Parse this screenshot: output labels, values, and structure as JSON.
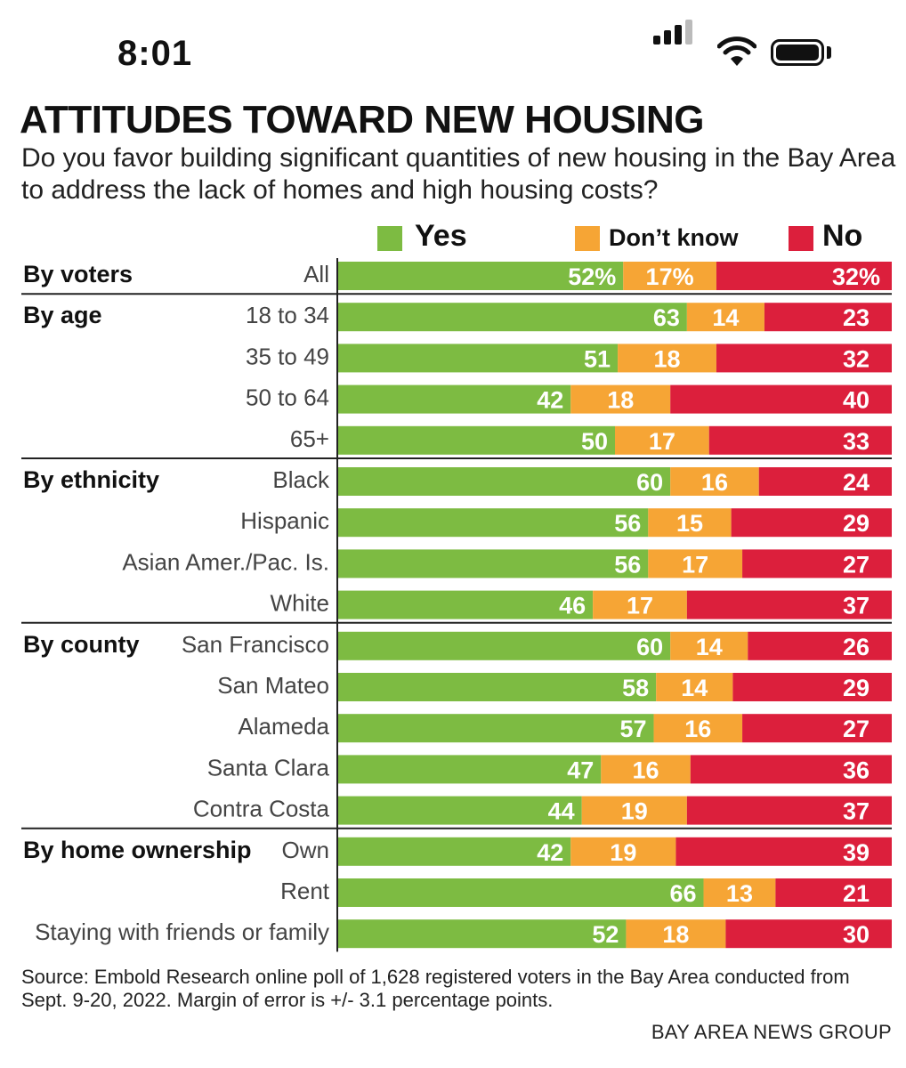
{
  "status_bar": {
    "time": "8:01",
    "icons": [
      "signal-icon",
      "wifi-icon",
      "battery-icon"
    ]
  },
  "title": "ATTITUDES TOWARD NEW HOUSING",
  "subtitle": "Do you favor building significant quantities of new housing in the Bay Area to address the lack of homes and high housing costs?",
  "legend": [
    {
      "label": "Yes",
      "color": "#7dbb42"
    },
    {
      "label": "Don’t know",
      "color": "#f6a535"
    },
    {
      "label": "No",
      "color": "#dc1f3c"
    }
  ],
  "chart_data": {
    "type": "bar",
    "stacked": true,
    "orientation": "horizontal",
    "series": [
      {
        "name": "Yes",
        "color": "#7dbb42"
      },
      {
        "name": "Don’t know",
        "color": "#f6a535"
      },
      {
        "name": "No",
        "color": "#dc1f3c"
      }
    ],
    "groups": [
      {
        "label": "By voters",
        "rows": [
          {
            "label": "All",
            "values": [
              52,
              17,
              32
            ],
            "value_labels": [
              "52%",
              "17%",
              "32%"
            ]
          }
        ]
      },
      {
        "label": "By age",
        "rows": [
          {
            "label": "18 to 34",
            "values": [
              63,
              14,
              23
            ]
          },
          {
            "label": "35 to 49",
            "values": [
              51,
              18,
              32
            ]
          },
          {
            "label": "50 to 64",
            "values": [
              42,
              18,
              40
            ]
          },
          {
            "label": "65+",
            "values": [
              50,
              17,
              33
            ]
          }
        ]
      },
      {
        "label": "By ethnicity",
        "rows": [
          {
            "label": "Black",
            "values": [
              60,
              16,
              24
            ]
          },
          {
            "label": "Hispanic",
            "values": [
              56,
              15,
              29
            ]
          },
          {
            "label": "Asian Amer./Pac. Is.",
            "values": [
              56,
              17,
              27
            ]
          },
          {
            "label": "White",
            "values": [
              46,
              17,
              37
            ]
          }
        ]
      },
      {
        "label": "By county",
        "rows": [
          {
            "label": "San Francisco",
            "values": [
              60,
              14,
              26
            ]
          },
          {
            "label": "San Mateo",
            "values": [
              58,
              14,
              29
            ]
          },
          {
            "label": "Alameda",
            "values": [
              57,
              16,
              27
            ]
          },
          {
            "label": "Santa Clara",
            "values": [
              47,
              16,
              36
            ]
          },
          {
            "label": "Contra Costa",
            "values": [
              44,
              19,
              37
            ]
          }
        ]
      },
      {
        "label": "By home ownership",
        "rows": [
          {
            "label": "Own",
            "values": [
              42,
              19,
              39
            ]
          },
          {
            "label": "Rent",
            "values": [
              66,
              13,
              21
            ]
          },
          {
            "label": "Staying with friends or family",
            "values": [
              52,
              18,
              30
            ]
          }
        ]
      }
    ]
  },
  "source": "Source: Embold Research online poll of 1,628 registered voters in the Bay Area conducted from Sept. 9-20, 2022. Margin of error is +/- 3.1 percentage points.",
  "credit": "BAY AREA NEWS GROUP"
}
